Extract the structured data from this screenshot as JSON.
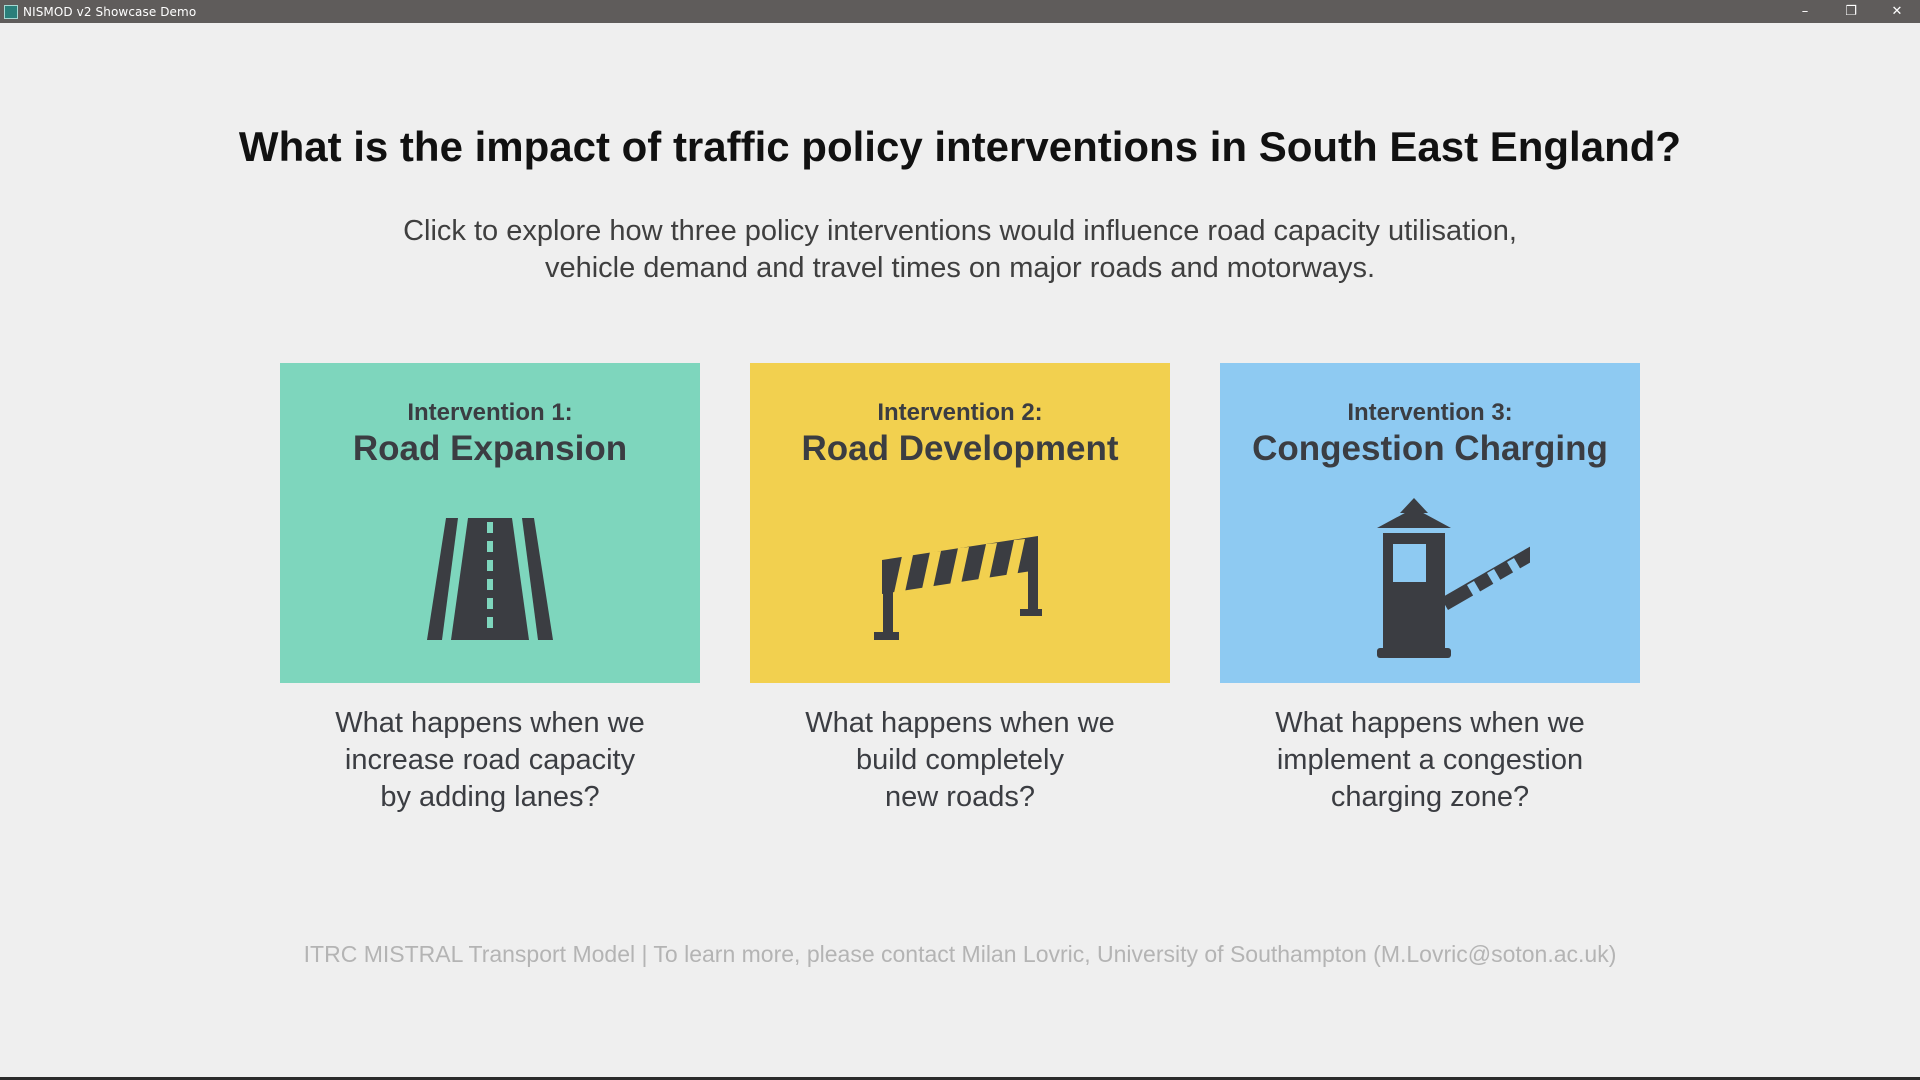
{
  "window": {
    "title": "NISMOD v2 Showcase Demo",
    "controls": {
      "minimize": "–",
      "restore": "❐",
      "close": "✕"
    }
  },
  "main": {
    "heading": "What is the impact of traffic policy interventions in South East England?",
    "subtitle_lines": [
      "Click to explore how three policy interventions would influence road capacity utilisation,",
      "vehicle demand and travel times on major roads and motorways."
    ]
  },
  "interventions": [
    {
      "kicker": "Intervention 1:",
      "title": "Road Expansion",
      "icon": "road-icon",
      "color": "#7ed6bd",
      "question_lines": [
        "What happens when we",
        "increase road capacity",
        "by adding lanes?"
      ]
    },
    {
      "kicker": "Intervention 2:",
      "title": "Road Development",
      "icon": "road-barrier-icon",
      "color": "#f2d04f",
      "question_lines": [
        "What happens when we",
        "build completely",
        "new roads?"
      ]
    },
    {
      "kicker": "Intervention 3:",
      "title": "Congestion Charging",
      "icon": "toll-booth-icon",
      "color": "#8ecaf2",
      "question_lines": [
        "What happens when we",
        "implement a congestion",
        "charging zone?"
      ]
    }
  ],
  "footer": {
    "text": "ITRC MISTRAL Transport Model | To learn more, please contact Milan Lovric, University of Southampton (M.Lovric@soton.ac.uk)"
  },
  "colors": {
    "background": "#efefef",
    "titlebar": "#5f5c5b",
    "icon_dark": "#3b3d42"
  }
}
